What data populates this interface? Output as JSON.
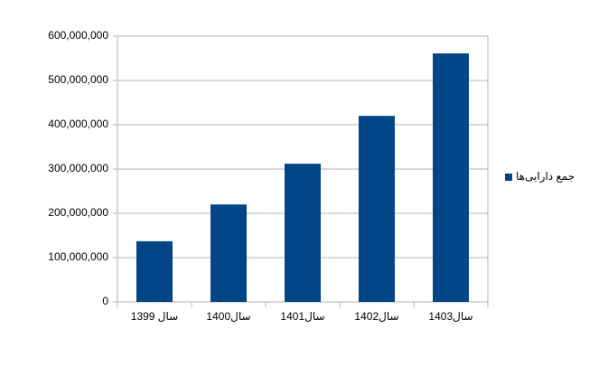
{
  "chart_data": {
    "type": "bar",
    "categories": [
      "سال 1399",
      "سال1400",
      "سال1401",
      "سال1402",
      "سال1403"
    ],
    "series": [
      {
        "name": "جمع دارایی‌ها",
        "color": "#004586",
        "values": [
          137000000,
          220000000,
          312000000,
          420000000,
          561000000
        ]
      }
    ],
    "ylim": [
      0,
      600000000
    ],
    "yticks": [
      0,
      {
        "value": 100000000,
        "label": "100,000,000"
      },
      {
        "value": 200000000,
        "label": "200,000,000"
      },
      {
        "value": 300000000,
        "label": "300,000,000"
      },
      {
        "value": 400000000,
        "label": "400,000,000"
      },
      {
        "value": 500000000,
        "label": "500,000,000"
      },
      {
        "value": 600000000,
        "label": "600,000,000"
      }
    ],
    "grid": true,
    "legend": "right"
  }
}
